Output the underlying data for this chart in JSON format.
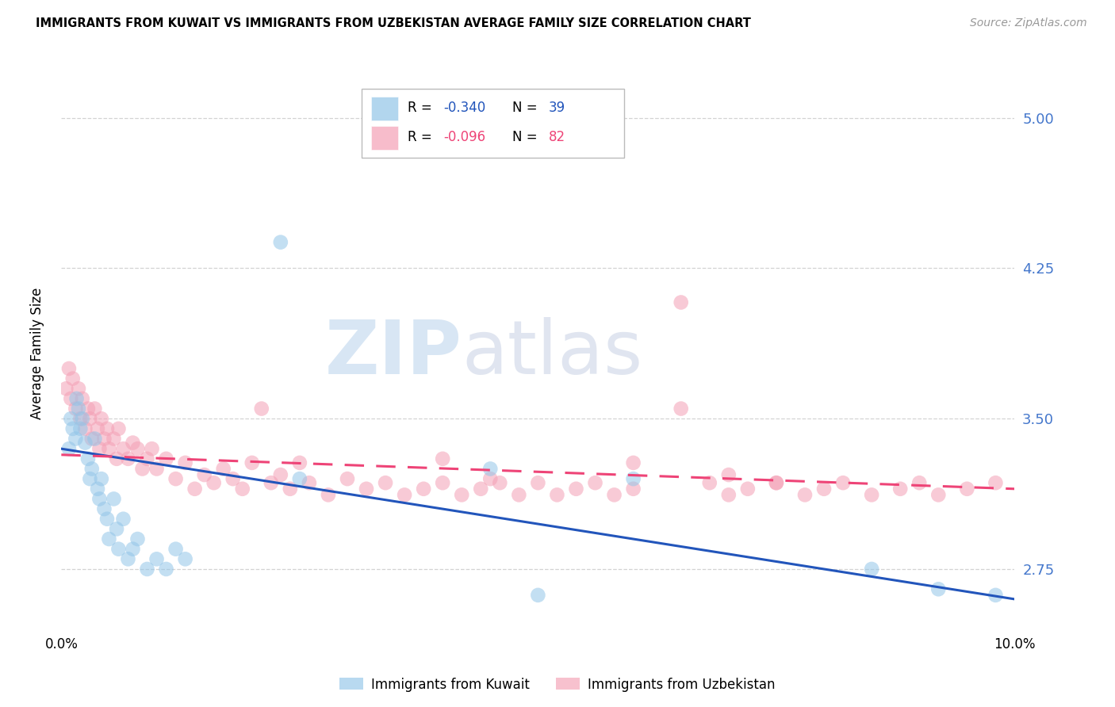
{
  "title": "IMMIGRANTS FROM KUWAIT VS IMMIGRANTS FROM UZBEKISTAN AVERAGE FAMILY SIZE CORRELATION CHART",
  "source": "Source: ZipAtlas.com",
  "ylabel": "Average Family Size",
  "ylim": [
    2.45,
    5.2
  ],
  "xlim": [
    0.0,
    0.1
  ],
  "yticks": [
    2.75,
    3.5,
    4.25,
    5.0
  ],
  "xticks": [
    0.0,
    0.02,
    0.04,
    0.06,
    0.08,
    0.1
  ],
  "xtick_labels": [
    "0.0%",
    "",
    "",
    "",
    "",
    "10.0%"
  ],
  "background_color": "#ffffff",
  "grid_color": "#c8c8c8",
  "color_kuwait": "#92C5E8",
  "color_uzbekistan": "#F4A0B5",
  "color_line_kuwait": "#2255BB",
  "color_line_uzbekistan": "#EE4477",
  "color_axis_right": "#4477CC",
  "kuwait_x": [
    0.0008,
    0.001,
    0.0012,
    0.0015,
    0.0016,
    0.0018,
    0.002,
    0.0022,
    0.0025,
    0.0028,
    0.003,
    0.0032,
    0.0035,
    0.0038,
    0.004,
    0.0042,
    0.0045,
    0.0048,
    0.005,
    0.0055,
    0.0058,
    0.006,
    0.0065,
    0.007,
    0.0075,
    0.008,
    0.009,
    0.01,
    0.011,
    0.012,
    0.013,
    0.023,
    0.025,
    0.045,
    0.05,
    0.06,
    0.085,
    0.092,
    0.098
  ],
  "kuwait_y": [
    3.35,
    3.5,
    3.45,
    3.4,
    3.6,
    3.55,
    3.45,
    3.5,
    3.38,
    3.3,
    3.2,
    3.25,
    3.4,
    3.15,
    3.1,
    3.2,
    3.05,
    3.0,
    2.9,
    3.1,
    2.95,
    2.85,
    3.0,
    2.8,
    2.85,
    2.9,
    2.75,
    2.8,
    2.75,
    2.85,
    2.8,
    4.38,
    3.2,
    3.25,
    2.62,
    3.2,
    2.75,
    2.65,
    2.62
  ],
  "uzbekistan_x": [
    0.0005,
    0.0008,
    0.001,
    0.0012,
    0.0015,
    0.0018,
    0.002,
    0.0022,
    0.0025,
    0.0028,
    0.003,
    0.0032,
    0.0035,
    0.0038,
    0.004,
    0.0042,
    0.0045,
    0.0048,
    0.005,
    0.0055,
    0.0058,
    0.006,
    0.0065,
    0.007,
    0.0075,
    0.008,
    0.0085,
    0.009,
    0.0095,
    0.01,
    0.011,
    0.012,
    0.013,
    0.014,
    0.015,
    0.016,
    0.017,
    0.018,
    0.019,
    0.02,
    0.021,
    0.022,
    0.023,
    0.024,
    0.025,
    0.026,
    0.028,
    0.03,
    0.032,
    0.034,
    0.036,
    0.038,
    0.04,
    0.042,
    0.044,
    0.046,
    0.048,
    0.05,
    0.052,
    0.054,
    0.056,
    0.058,
    0.06,
    0.065,
    0.068,
    0.07,
    0.072,
    0.075,
    0.078,
    0.08,
    0.082,
    0.085,
    0.088,
    0.09,
    0.092,
    0.095,
    0.098,
    0.04,
    0.045,
    0.06,
    0.065,
    0.07,
    0.075
  ],
  "uzbekistan_y": [
    3.65,
    3.75,
    3.6,
    3.7,
    3.55,
    3.65,
    3.5,
    3.6,
    3.45,
    3.55,
    3.5,
    3.4,
    3.55,
    3.45,
    3.35,
    3.5,
    3.4,
    3.45,
    3.35,
    3.4,
    3.3,
    3.45,
    3.35,
    3.3,
    3.38,
    3.35,
    3.25,
    3.3,
    3.35,
    3.25,
    3.3,
    3.2,
    3.28,
    3.15,
    3.22,
    3.18,
    3.25,
    3.2,
    3.15,
    3.28,
    3.55,
    3.18,
    3.22,
    3.15,
    3.28,
    3.18,
    3.12,
    3.2,
    3.15,
    3.18,
    3.12,
    3.15,
    3.18,
    3.12,
    3.15,
    3.18,
    3.12,
    3.18,
    3.12,
    3.15,
    3.18,
    3.12,
    3.15,
    3.55,
    3.18,
    3.12,
    3.15,
    3.18,
    3.12,
    3.15,
    3.18,
    3.12,
    3.15,
    3.18,
    3.12,
    3.15,
    3.18,
    3.3,
    3.2,
    3.28,
    4.08,
    3.22,
    3.18
  ]
}
